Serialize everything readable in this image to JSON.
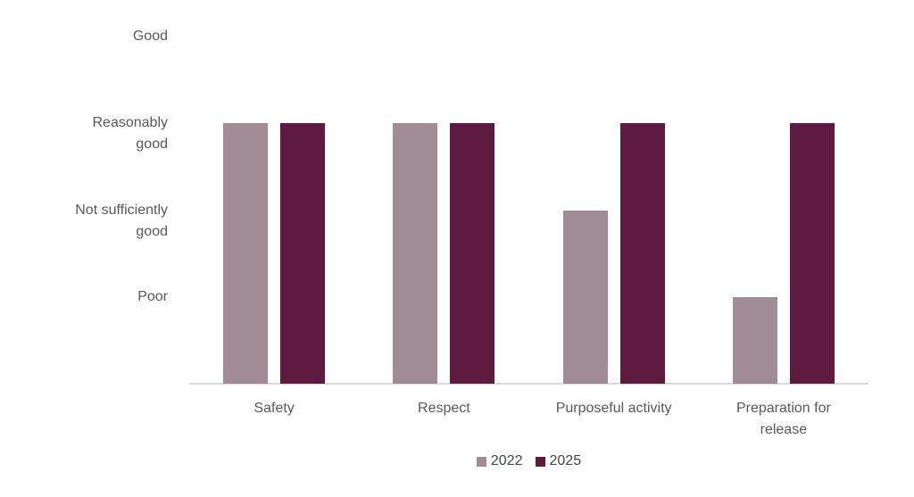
{
  "figure": {
    "background": "#FFFFFF"
  },
  "chart_data": {
    "type": "bar",
    "title": "",
    "categories": [
      "Safety",
      "Respect",
      "Purposeful activity",
      "Preparation for release"
    ],
    "category_label_lines": [
      [
        "Safety"
      ],
      [
        "Respect"
      ],
      [
        "Purposeful activity"
      ],
      [
        "Preparation for",
        "release"
      ]
    ],
    "series": [
      {
        "name": "2022",
        "color": "#A18C95",
        "values": [
          3,
          3,
          2,
          1
        ]
      },
      {
        "name": "2025",
        "color": "#5E1A3F",
        "values": [
          3,
          3,
          3,
          3
        ]
      }
    ],
    "y_ticks": [
      {
        "value": 4,
        "label": "Good",
        "lines": [
          "Good"
        ]
      },
      {
        "value": 3,
        "label": "Reasonably good",
        "lines": [
          "Reasonably",
          "good"
        ]
      },
      {
        "value": 2,
        "label": "Not sufficiently good",
        "lines": [
          "Not sufficiently",
          "good"
        ]
      },
      {
        "value": 1,
        "label": "Poor",
        "lines": [
          "Poor"
        ]
      }
    ],
    "ylim": [
      0,
      4.32
    ],
    "grid": false,
    "legend_position": "bottom",
    "axis_line_color": "#D9D9D9",
    "axis_label_color": "#595959",
    "legend_text_color": "#454545"
  }
}
